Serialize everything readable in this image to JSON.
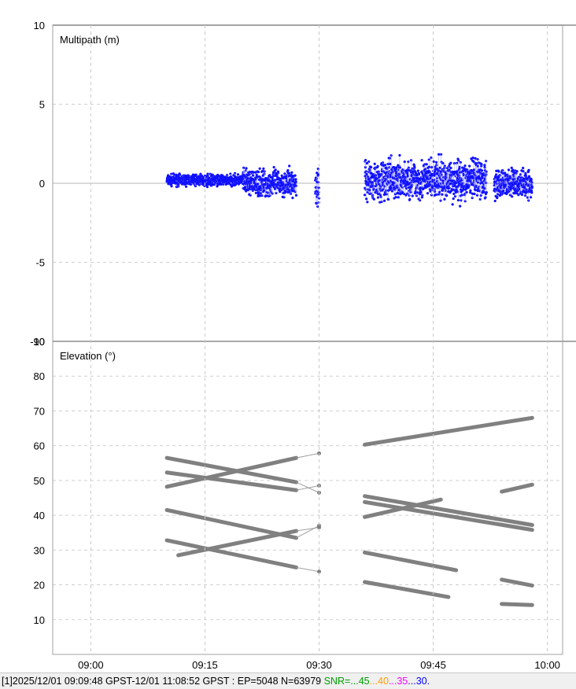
{
  "chart_data": [
    {
      "type": "scatter",
      "title": "Multipath (m)",
      "ylim": [
        -10,
        10
      ],
      "yticks": [
        "10",
        "5",
        "0",
        "-5",
        "-10"
      ],
      "series": [
        {
          "color": "#1010ff",
          "segments": [
            {
              "t0": "09:10",
              "t1": "09:20",
              "center": 0.2,
              "spread": 0.5
            },
            {
              "t0": "09:20",
              "t1": "09:27",
              "center": 0.0,
              "spread": 1.2
            },
            {
              "t0": "09:29.5",
              "t1": "09:30",
              "center": -0.2,
              "spread": 2.0
            },
            {
              "t0": "09:36",
              "t1": "09:52",
              "center": 0.2,
              "spread": 1.8
            },
            {
              "t0": "09:53",
              "t1": "09:58",
              "center": 0.0,
              "spread": 1.3
            }
          ]
        }
      ]
    },
    {
      "type": "line",
      "title": "Elevation (°)",
      "ylim": [
        0,
        90
      ],
      "yticks": [
        "90",
        "80",
        "70",
        "60",
        "50",
        "40",
        "30",
        "20",
        "10"
      ],
      "xticks": [
        "09:00",
        "09:15",
        "09:30",
        "09:45",
        "10:00"
      ],
      "xlim": [
        "08:55",
        "10:02"
      ],
      "series": [
        {
          "x": [
            "09:10",
            "09:27",
            "09:30"
          ],
          "y": [
            56.5,
            49.5,
            46.5
          ]
        },
        {
          "x": [
            "09:10",
            "09:27",
            "09:30"
          ],
          "y": [
            52.3,
            47.2,
            48.5
          ]
        },
        {
          "x": [
            "09:10",
            "09:27",
            "09:30"
          ],
          "y": [
            48.2,
            56.5,
            57.8
          ]
        },
        {
          "x": [
            "09:10",
            "09:27",
            "09:30"
          ],
          "y": [
            41.5,
            33.5,
            37.0
          ]
        },
        {
          "x": [
            "09:10",
            "09:27",
            "09:30"
          ],
          "y": [
            32.8,
            25.0,
            23.8
          ]
        },
        {
          "x": [
            "09:11.5",
            "09:27",
            "09:30"
          ],
          "y": [
            28.5,
            35.5,
            36.5
          ]
        },
        {
          "x": [
            "09:36",
            "09:58"
          ],
          "y": [
            60.3,
            68.0
          ]
        },
        {
          "x": [
            "09:36",
            "09:58"
          ],
          "y": [
            45.5,
            37.2
          ]
        },
        {
          "x": [
            "09:36",
            "09:58"
          ],
          "y": [
            43.8,
            35.8
          ]
        },
        {
          "x": [
            "09:36",
            "09:46"
          ],
          "y": [
            39.5,
            44.5
          ]
        },
        {
          "x": [
            "09:36",
            "09:48"
          ],
          "y": [
            29.3,
            24.2
          ]
        },
        {
          "x": [
            "09:36",
            "09:47"
          ],
          "y": [
            20.8,
            16.5
          ]
        },
        {
          "x": [
            "09:54",
            "09:58"
          ],
          "y": [
            46.8,
            48.8
          ]
        },
        {
          "x": [
            "09:54",
            "09:58"
          ],
          "y": [
            21.5,
            19.8
          ]
        },
        {
          "x": [
            "09:54",
            "09:58"
          ],
          "y": [
            14.5,
            14.2
          ]
        }
      ]
    }
  ],
  "status": {
    "main": "[1]2025/12/01 09:09:48 GPST-12/01 11:08:52 GPST : EP=5048 N=63979 ",
    "snr_label": "SNR=...",
    "snr_45": "45",
    "snr_40": "40",
    "snr_35": "35",
    "snr_30": "30.",
    "snr_sep": "...",
    "colors": {
      "snr_label": "#00a000",
      "snr_45": "#00a000",
      "snr_40": "#ffa000",
      "snr_35": "#ff00ff",
      "snr_30": "#0000ff"
    }
  }
}
